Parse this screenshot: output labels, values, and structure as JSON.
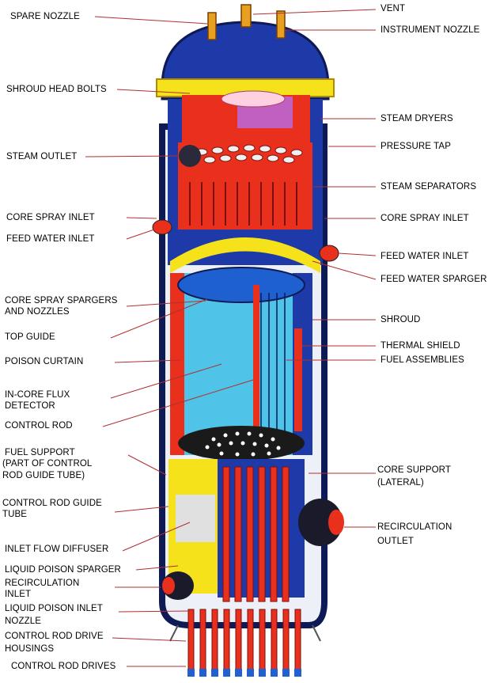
{
  "labels_left": [
    {
      "id": "spare-nozzle",
      "text": "SPARE NOZZLE"
    },
    {
      "id": "shroud-head-bolts",
      "text": "SHROUD HEAD BOLTS"
    },
    {
      "id": "steam-outlet",
      "text": "STEAM OUTLET"
    },
    {
      "id": "core-spray-inlet-left",
      "text": "CORE SPRAY INLET"
    },
    {
      "id": "feed-water-inlet-left",
      "text": "FEED WATER INLET"
    },
    {
      "id": "core-spray-spargers-1",
      "text": "CORE SPRAY SPARGERS"
    },
    {
      "id": "core-spray-spargers-2",
      "text": "AND NOZZLES"
    },
    {
      "id": "top-guide",
      "text": "TOP GUIDE"
    },
    {
      "id": "poison-curtain",
      "text": "POISON CURTAIN"
    },
    {
      "id": "in-core-flux-1",
      "text": "IN-CORE FLUX"
    },
    {
      "id": "in-core-flux-2",
      "text": "DETECTOR"
    },
    {
      "id": "control-rod",
      "text": "CONTROL ROD"
    },
    {
      "id": "fuel-support-1",
      "text": "FUEL SUPPORT"
    },
    {
      "id": "fuel-support-2",
      "text": "(PART OF CONTROL"
    },
    {
      "id": "fuel-support-3",
      "text": "ROD GUIDE TUBE)"
    },
    {
      "id": "crgt-1",
      "text": "CONTROL ROD GUIDE"
    },
    {
      "id": "crgt-2",
      "text": "TUBE"
    },
    {
      "id": "inlet-flow-diffuser",
      "text": "INLET FLOW DIFFUSER"
    },
    {
      "id": "liquid-poison-sparger",
      "text": "LIQUID POISON SPARGER"
    },
    {
      "id": "recirc-inlet-1",
      "text": "RECIRCULATION"
    },
    {
      "id": "recirc-inlet-2",
      "text": "INLET"
    },
    {
      "id": "lp-inlet-nozzle-1",
      "text": "LIQUID POISON INLET"
    },
    {
      "id": "lp-inlet-nozzle-2",
      "text": "NOZZLE"
    },
    {
      "id": "crd-housings-1",
      "text": "CONTROL ROD DRIVE"
    },
    {
      "id": "crd-housings-2",
      "text": "HOUSINGS"
    },
    {
      "id": "crd",
      "text": "CONTROL ROD DRIVES"
    }
  ],
  "labels_right": [
    {
      "id": "vent",
      "text": "VENT"
    },
    {
      "id": "instrument-nozzle",
      "text": "INSTRUMENT NOZZLE"
    },
    {
      "id": "steam-dryers",
      "text": "STEAM DRYERS"
    },
    {
      "id": "pressure-tap",
      "text": "PRESSURE TAP"
    },
    {
      "id": "steam-separators",
      "text": "STEAM SEPARATORS"
    },
    {
      "id": "core-spray-inlet-right",
      "text": "CORE SPRAY INLET"
    },
    {
      "id": "feed-water-inlet-right",
      "text": "FEED WATER INLET"
    },
    {
      "id": "feed-water-sparger",
      "text": "FEED WATER SPARGER"
    },
    {
      "id": "shroud",
      "text": "SHROUD"
    },
    {
      "id": "thermal-shield",
      "text": "THERMAL SHIELD"
    },
    {
      "id": "fuel-assemblies",
      "text": "FUEL ASSEMBLIES"
    },
    {
      "id": "core-support-1",
      "text": "CORE SUPPORT"
    },
    {
      "id": "core-support-2",
      "text": "(LATERAL)"
    },
    {
      "id": "recirc-outlet-1",
      "text": "RECIRCULATION"
    },
    {
      "id": "recirc-outlet-2",
      "text": "OUTLET"
    }
  ],
  "colors": {
    "vessel_blue": "#1e3aa8",
    "vessel_dark": "#0d1a55",
    "red": "#e8301c",
    "yellow": "#f5e21a",
    "cyan": "#4fc3e8",
    "magenta": "#c060c0",
    "leader": "#b03030"
  }
}
